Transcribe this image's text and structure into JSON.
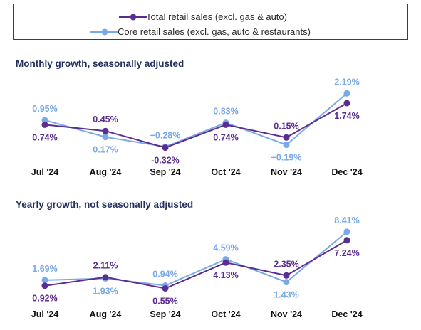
{
  "legend": {
    "total_label": "Total retail sales (excl. gas & auto)",
    "core_label": "Core retail sales (excl. gas, auto & restaurants)"
  },
  "colors": {
    "total": "#5b2c91",
    "core": "#7aa9e8",
    "title": "#23305e"
  },
  "chart_data": [
    {
      "type": "line",
      "title": "Monthly growth, seasonally adjusted",
      "categories": [
        "Jul '24",
        "Aug '24",
        "Sep '24",
        "Oct '24",
        "Nov '24",
        "Dec '24"
      ],
      "series": [
        {
          "name": "Total retail sales (excl. gas & auto)",
          "values": [
            0.74,
            0.45,
            -0.32,
            0.74,
            0.15,
            1.74
          ],
          "labels": [
            "0.74%",
            "0.45%",
            "-0.32%",
            "0.74%",
            "0.15%",
            "1.74%"
          ]
        },
        {
          "name": "Core retail sales (excl. gas, auto & restaurants)",
          "values": [
            0.95,
            0.17,
            -0.28,
            0.83,
            -0.19,
            2.19
          ],
          "labels": [
            "0.95%",
            "0.17%",
            "−0.28%",
            "0.83%",
            "−0.19%",
            "2.19%"
          ]
        }
      ],
      "ylim": [
        -0.4,
        2.3
      ],
      "grid": false,
      "legend": "top"
    },
    {
      "type": "line",
      "title": "Yearly growth, not seasonally adjusted",
      "categories": [
        "Jul '24",
        "Aug '24",
        "Sep '24",
        "Oct '24",
        "Nov '24",
        "Dec '24"
      ],
      "series": [
        {
          "name": "Total retail sales (excl. gas & auto)",
          "values": [
            0.92,
            2.11,
            0.55,
            4.13,
            2.35,
            7.24
          ],
          "labels": [
            "0.92%",
            "2.11%",
            "0.55%",
            "4.13%",
            "2.35%",
            "7.24%"
          ]
        },
        {
          "name": "Core retail sales (excl. gas, auto & restaurants)",
          "values": [
            1.69,
            1.93,
            0.94,
            4.59,
            1.43,
            8.41
          ],
          "labels": [
            "1.69%",
            "1.93%",
            "0.94%",
            "4.59%",
            "1.43%",
            "8.41%"
          ]
        }
      ],
      "ylim": [
        0.3,
        8.6
      ],
      "grid": false,
      "legend": "top"
    }
  ]
}
